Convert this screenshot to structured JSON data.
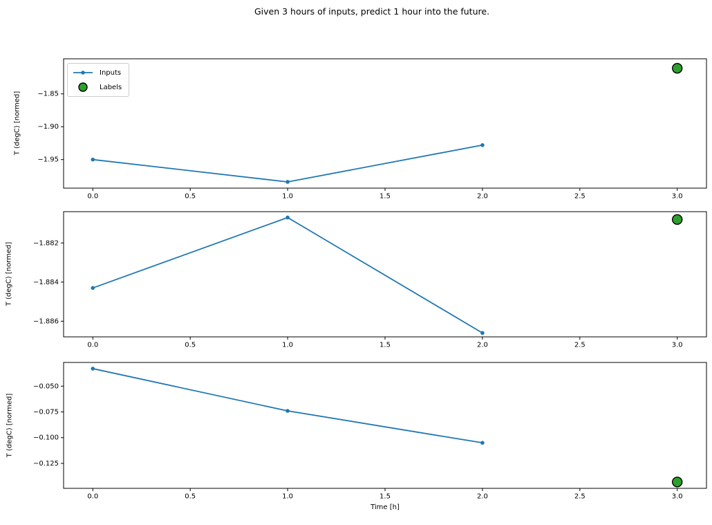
{
  "figure": {
    "title": "Given 3 hours of inputs, predict 1 hour into the future.",
    "xlabel": "Time [h]",
    "background": "#ffffff"
  },
  "colors": {
    "inputs_line": "#1f77b4",
    "labels_fill": "#2ca02c",
    "labels_edge": "#000000",
    "axis": "#000000",
    "tick_text": "#000000"
  },
  "legend": {
    "position": "upper-left",
    "items": [
      {
        "label": "Inputs",
        "marker": "line-with-dot",
        "color": "#1f77b4"
      },
      {
        "label": "Labels",
        "marker": "filled-circle",
        "color": "#2ca02c",
        "edge": "#000000"
      }
    ]
  },
  "chart_data": [
    {
      "type": "line",
      "ylabel": "T (degC) [normed]",
      "x": [
        0.0,
        1.0,
        2.0
      ],
      "series": [
        {
          "name": "Inputs",
          "color": "#1f77b4",
          "values": [
            -1.95,
            -1.984,
            -1.928
          ]
        }
      ],
      "label_points": [
        {
          "name": "Labels",
          "x": 3.0,
          "y": -1.811,
          "color": "#2ca02c",
          "edge": "#000000"
        }
      ],
      "xlim": [
        -0.15,
        3.15
      ],
      "ylim": [
        -1.9935,
        -1.7966
      ],
      "xtick_values": [
        0.0,
        0.5,
        1.0,
        1.5,
        2.0,
        2.5,
        3.0
      ],
      "xtick_labels": [
        "0.0",
        "0.5",
        "1.0",
        "1.5",
        "2.0",
        "2.5",
        "3.0"
      ],
      "ytick_values": [
        -1.85,
        -1.9,
        -1.95
      ],
      "ytick_labels": [
        "−1.85",
        "−1.90",
        "−1.95"
      ],
      "grid": false,
      "has_legend": true
    },
    {
      "type": "line",
      "ylabel": "T (degC) [normed]",
      "x": [
        0.0,
        1.0,
        2.0
      ],
      "series": [
        {
          "name": "Inputs",
          "color": "#1f77b4",
          "values": [
            -1.8843,
            -1.8807,
            -1.8866
          ]
        }
      ],
      "label_points": [
        {
          "name": "Labels",
          "x": 3.0,
          "y": -1.8808,
          "color": "#2ca02c",
          "edge": "#000000"
        }
      ],
      "xlim": [
        -0.15,
        3.15
      ],
      "ylim": [
        -1.8868,
        -1.8804
      ],
      "xtick_values": [
        0.0,
        0.5,
        1.0,
        1.5,
        2.0,
        2.5,
        3.0
      ],
      "xtick_labels": [
        "0.0",
        "0.5",
        "1.0",
        "1.5",
        "2.0",
        "2.5",
        "3.0"
      ],
      "ytick_values": [
        -1.882,
        -1.884,
        -1.886
      ],
      "ytick_labels": [
        "−1.882",
        "−1.884",
        "−1.886"
      ],
      "grid": false,
      "has_legend": false
    },
    {
      "type": "line",
      "ylabel": "T (degC) [normed]",
      "x": [
        0.0,
        1.0,
        2.0
      ],
      "series": [
        {
          "name": "Inputs",
          "color": "#1f77b4",
          "values": [
            -0.033,
            -0.074,
            -0.105
          ]
        }
      ],
      "label_points": [
        {
          "name": "Labels",
          "x": 3.0,
          "y": -0.143,
          "color": "#2ca02c",
          "edge": "#000000"
        }
      ],
      "xlim": [
        -0.15,
        3.15
      ],
      "ylim": [
        -0.1492,
        -0.027
      ],
      "xtick_values": [
        0.0,
        0.5,
        1.0,
        1.5,
        2.0,
        2.5,
        3.0
      ],
      "xtick_labels": [
        "0.0",
        "0.5",
        "1.0",
        "1.5",
        "2.0",
        "2.5",
        "3.0"
      ],
      "ytick_values": [
        -0.05,
        -0.075,
        -0.1,
        -0.125
      ],
      "ytick_labels": [
        "−0.050",
        "−0.075",
        "−0.100",
        "−0.125"
      ],
      "grid": false,
      "has_legend": false
    }
  ]
}
